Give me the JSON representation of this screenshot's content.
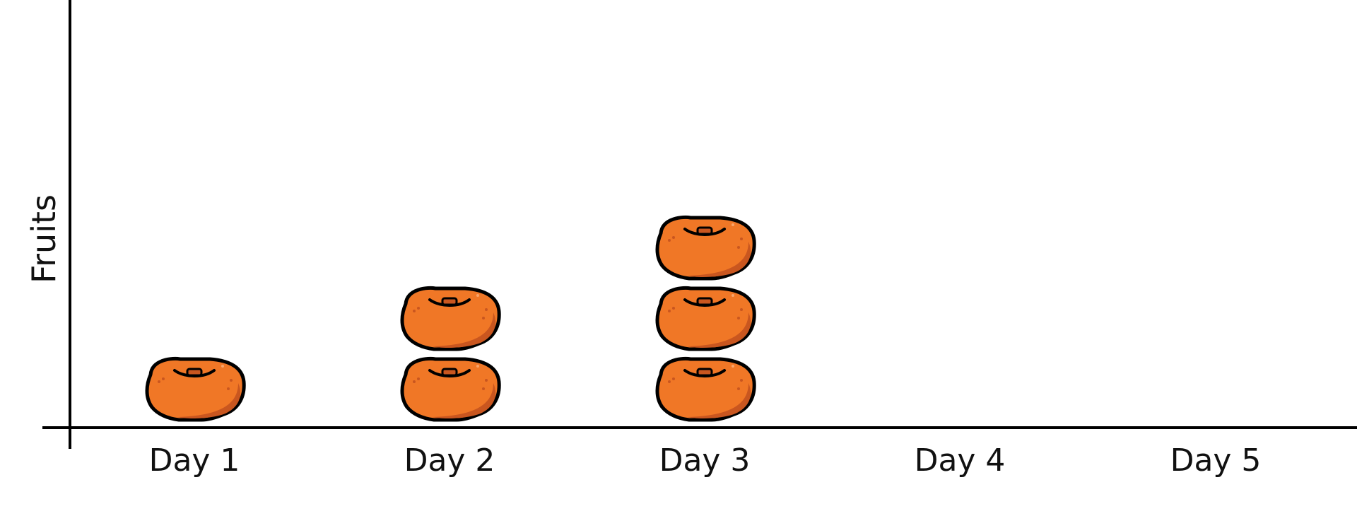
{
  "chart_data": {
    "type": "pictograph",
    "categories": [
      "Day 1",
      "Day 2",
      "Day 3",
      "Day 4",
      "Day 5"
    ],
    "values": [
      1,
      2,
      3,
      0,
      0
    ],
    "ylabel": "Fruits",
    "xlabel": "",
    "grid": false,
    "icon": "orange-icon",
    "colors": {
      "fruit": "#F07726",
      "fruit_shade": "#C9561F",
      "outline": "#000000",
      "axis": "#000000"
    }
  }
}
